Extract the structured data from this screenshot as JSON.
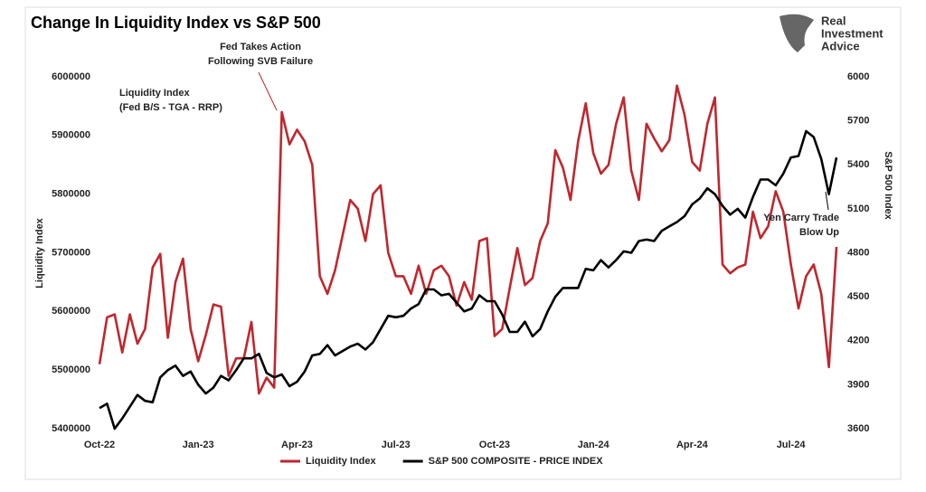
{
  "chart_data": {
    "type": "line",
    "title": "Change In Liquidity Index vs S&P 500",
    "logo": [
      "Real",
      "Investment",
      "Advice"
    ],
    "y_label": "Liquidity Index",
    "y2_label": "S&P 500 Index",
    "annotations": [
      {
        "lines": [
          "Fed Takes Action",
          "Following SVB Failure"
        ]
      },
      {
        "lines": [
          "Liquidity Index",
          "(Fed B/S - TGA - RRP)"
        ]
      },
      {
        "lines": [
          "Yen Carry Trade",
          "Blow Up"
        ]
      }
    ],
    "categories": [
      "Oct-22",
      null,
      null,
      null,
      null,
      null,
      null,
      null,
      null,
      null,
      null,
      null,
      null,
      "Jan-23",
      null,
      null,
      null,
      null,
      null,
      null,
      null,
      null,
      null,
      null,
      null,
      null,
      "Apr-23",
      null,
      null,
      null,
      null,
      null,
      null,
      null,
      null,
      null,
      null,
      null,
      null,
      "Jul-23",
      null,
      null,
      null,
      null,
      null,
      null,
      null,
      null,
      null,
      null,
      null,
      null,
      "Oct-23",
      null,
      null,
      null,
      null,
      null,
      null,
      null,
      null,
      null,
      null,
      null,
      null,
      "Jan-24",
      null,
      null,
      null,
      null,
      null,
      null,
      null,
      null,
      null,
      null,
      null,
      null,
      "Apr-24",
      null,
      null,
      null,
      null,
      null,
      null,
      null,
      null,
      null,
      null,
      null,
      null,
      "Jul-24",
      null,
      null,
      null,
      null,
      null,
      null
    ],
    "ylim": [
      5400000,
      6000000
    ],
    "yticks": [
      5400000,
      5500000,
      5600000,
      5700000,
      5800000,
      5900000,
      6000000
    ],
    "y2lim": [
      3600,
      6000
    ],
    "y2ticks": [
      3600,
      3900,
      4200,
      4500,
      4800,
      5100,
      5400,
      5700,
      6000
    ],
    "legend": "bottom",
    "series": [
      {
        "name": "Liquidity Index",
        "color": "#c0272d",
        "values": [
          5510000,
          5590000,
          5595000,
          5530000,
          5595000,
          5545000,
          5570000,
          5675000,
          5698000,
          5555000,
          5650000,
          5690000,
          5570000,
          5515000,
          5560000,
          5612000,
          5608000,
          5490000,
          5520000,
          5520000,
          5582000,
          5460000,
          5487000,
          5470000,
          5940000,
          5885000,
          5910000,
          5890000,
          5850000,
          5660000,
          5630000,
          5670000,
          5730000,
          5790000,
          5775000,
          5720000,
          5800000,
          5815000,
          5700000,
          5660000,
          5660000,
          5630000,
          5678000,
          5630000,
          5670000,
          5678000,
          5660000,
          5610000,
          5650000,
          5620000,
          5720000,
          5725000,
          5558000,
          5570000,
          5640000,
          5708000,
          5645000,
          5657000,
          5720000,
          5750000,
          5875000,
          5845000,
          5790000,
          5890000,
          5955000,
          5870000,
          5835000,
          5850000,
          5920000,
          5965000,
          5840000,
          5790000,
          5920000,
          5895000,
          5873000,
          5892000,
          5985000,
          5935000,
          5855000,
          5840000,
          5920000,
          5965000,
          5680000,
          5665000,
          5675000,
          5680000,
          5770000,
          5725000,
          5745000,
          5805000,
          5770000,
          5680000,
          5605000,
          5660000,
          5680000,
          5630000,
          5505000,
          5710000
        ]
      },
      {
        "name": "S&P 500 COMPOSITE - PRICE INDEX",
        "color": "#000000",
        "axis": "y2",
        "values": [
          3740,
          3770,
          3600,
          3670,
          3750,
          3830,
          3790,
          3780,
          3950,
          4000,
          4030,
          3960,
          3990,
          3900,
          3840,
          3880,
          3960,
          3930,
          4000,
          4080,
          4080,
          4110,
          3980,
          3950,
          3970,
          3890,
          3920,
          3990,
          4100,
          4110,
          4170,
          4100,
          4130,
          4160,
          4180,
          4140,
          4190,
          4280,
          4370,
          4360,
          4370,
          4420,
          4450,
          4550,
          4550,
          4510,
          4520,
          4460,
          4400,
          4420,
          4510,
          4470,
          4470,
          4380,
          4260,
          4260,
          4330,
          4230,
          4280,
          4400,
          4500,
          4560,
          4560,
          4560,
          4690,
          4680,
          4750,
          4700,
          4750,
          4810,
          4800,
          4880,
          4890,
          4880,
          4950,
          4980,
          5010,
          5050,
          5130,
          5170,
          5240,
          5200,
          5120,
          5060,
          5100,
          5040,
          5180,
          5300,
          5300,
          5260,
          5340,
          5450,
          5460,
          5630,
          5590,
          5440,
          5200,
          5450
        ]
      }
    ]
  }
}
